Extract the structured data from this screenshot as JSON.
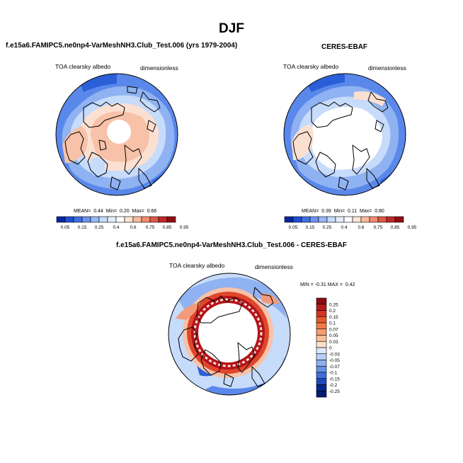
{
  "page_title": "DJF",
  "panels": [
    {
      "title": "f.e15a6.FAMIPC5.ne0np4-VarMeshNH3.Club_Test.006 (yrs 1979-2004)",
      "variable": "TOA clearsky albedo",
      "units": "dimensionless",
      "stats": {
        "mean_label": "MEAN=",
        "mean": "0.44",
        "min_label": "Min=",
        "min": "0.20",
        "max_label": "Max=",
        "max": "0.66"
      }
    },
    {
      "title": "CERES-EBAF",
      "variable": "TOA clearsky albedo",
      "units": "dimensionless",
      "stats": {
        "mean_label": "MEAN=",
        "mean": "0.39",
        "min_label": "Min=",
        "min": "0.11",
        "max_label": "Max=",
        "max": "0.80"
      }
    },
    {
      "title": "f.e15a6.FAMIPC5.ne0np4-VarMeshNH3.Club_Test.006 - CERES-EBAF",
      "variable": "TOA clearsky albedo",
      "units": "dimensionless",
      "minmax": {
        "min_label": "MIN =",
        "min": "-0.31",
        "max_label": "MAX =",
        "max": "0.42"
      }
    }
  ],
  "colorbar_horizontal": {
    "labels": [
      "0.05",
      "0.15",
      "0.25",
      "0.4",
      "0.6",
      "0.75",
      "0.85",
      "0.95"
    ],
    "colors": [
      "#08279f",
      "#1f4fd0",
      "#3f6fe0",
      "#6a93ef",
      "#97b8f5",
      "#c4dbfa",
      "#e3eefc",
      "#ffffff",
      "#fde3d3",
      "#f9b99d",
      "#f08c6d",
      "#de5a45",
      "#c0282a",
      "#8f0d12"
    ]
  },
  "colorbar_vertical": {
    "labels": [
      "0.25",
      "0.2",
      "0.15",
      "0.1",
      "0.07",
      "0.05",
      "0.03",
      "0",
      "-0.03",
      "-0.05",
      "-0.07",
      "-0.1",
      "-0.15",
      "-0.2",
      "-0.25"
    ],
    "colors": [
      "#8f0d12",
      "#b41c1c",
      "#d23522",
      "#e65a2c",
      "#f27b45",
      "#f79d6d",
      "#fbbf98",
      "#fde0c8",
      "#dbe9fb",
      "#b7cff6",
      "#8db0ee",
      "#6691e4",
      "#3f6fda",
      "#2049bb",
      "#0a2690",
      "#061a70"
    ]
  },
  "map_colors": {
    "deep_blue": "#2b5fd8",
    "mid_blue": "#5a88ea",
    "light_blue": "#8fb2f2",
    "pale_blue": "#c7dbfa",
    "pale_peach": "#fbe0d1",
    "peach": "#f7c2a8",
    "salmon": "#f39a7a",
    "red": "#e0462c",
    "dark_red": "#b3131a"
  }
}
